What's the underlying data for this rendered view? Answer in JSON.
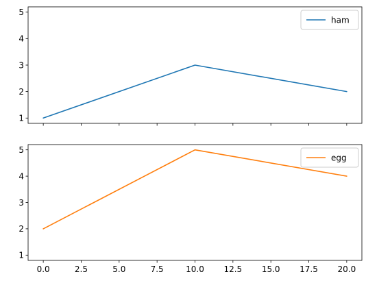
{
  "chart_data": [
    {
      "type": "line",
      "x": [
        0,
        10,
        20
      ],
      "series": [
        {
          "name": "ham",
          "values": [
            1,
            3,
            2
          ],
          "color": "#1f77b4"
        }
      ],
      "xlim": [
        -1,
        21
      ],
      "ylim": [
        0.8,
        5.2
      ],
      "yticks": [
        1,
        2,
        3,
        4,
        5
      ],
      "xticks": [
        0,
        2.5,
        5,
        7.5,
        10,
        12.5,
        15,
        17.5,
        20
      ],
      "show_xtick_labels": false,
      "legend_loc": "upper right",
      "grid": false
    },
    {
      "type": "line",
      "x": [
        0,
        10,
        20
      ],
      "series": [
        {
          "name": "egg",
          "values": [
            2,
            5,
            4
          ],
          "color": "#ff7f0e"
        }
      ],
      "xlim": [
        -1,
        21
      ],
      "ylim": [
        0.8,
        5.2
      ],
      "yticks": [
        1,
        2,
        3,
        4,
        5
      ],
      "xticks": [
        0,
        2.5,
        5,
        7.5,
        10,
        12.5,
        15,
        17.5,
        20
      ],
      "xtick_labels": [
        "0.0",
        "2.5",
        "5.0",
        "7.5",
        "10.0",
        "12.5",
        "15.0",
        "17.5",
        "20.0"
      ],
      "show_xtick_labels": true,
      "legend_loc": "upper right",
      "grid": false
    }
  ]
}
